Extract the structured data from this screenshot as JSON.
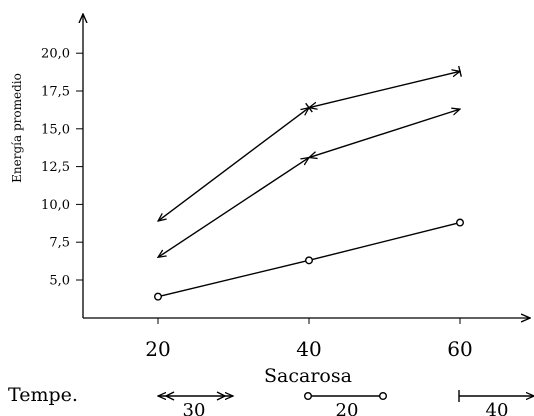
{
  "chart_data": {
    "type": "line",
    "xlabel": "Sacarosa",
    "ylabel": "Energía promedio",
    "x": [
      20,
      40,
      60
    ],
    "xticks": [
      "20",
      "40",
      "60"
    ],
    "yticks": [
      "5,0",
      "7,5",
      "10,0",
      "12,5",
      "15,0",
      "17,5",
      "20,0"
    ],
    "xlim": [
      10,
      70
    ],
    "ylim": [
      3.0,
      21.2
    ],
    "grid": false,
    "series": [
      {
        "name": "30",
        "values": [
          6.5,
          13.1,
          16.3
        ],
        "marker": "double-arrow"
      },
      {
        "name": "20",
        "values": [
          3.9,
          6.3,
          8.8
        ],
        "marker": "circle"
      },
      {
        "name": "40",
        "values": [
          8.9,
          16.4,
          18.8
        ],
        "marker": "bar-arrow"
      }
    ],
    "legend": {
      "title": "Tempe.",
      "placement": "bottom",
      "entries": [
        "30",
        "20",
        "40"
      ]
    }
  }
}
